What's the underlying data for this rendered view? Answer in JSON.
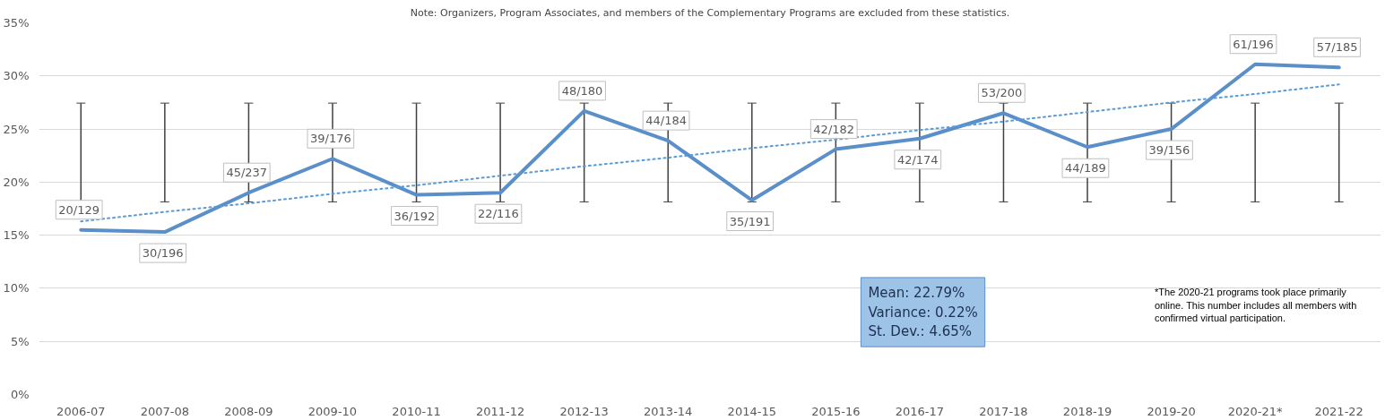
{
  "chart_data": {
    "type": "line",
    "title": "Note: Organizers, Program Associates, and members of the Complementary Programs are excluded from these statistics.",
    "categories": [
      "2006-07",
      "2007-08",
      "2008-09",
      "2009-10",
      "2010-11",
      "2011-12",
      "2012-13",
      "2013-14",
      "2014-15",
      "2015-16",
      "2016-17",
      "2017-18",
      "2018-19",
      "2019-20",
      "2020-21*",
      "2021-22"
    ],
    "series": [
      {
        "color": "#5b8fc9",
        "values": [
          15.5,
          15.3,
          19.0,
          22.2,
          18.8,
          19.0,
          26.7,
          23.9,
          18.3,
          23.1,
          24.1,
          26.5,
          23.3,
          25.0,
          31.1,
          30.8
        ],
        "errors": [
          [
            18.14,
            27.44
          ],
          [
            18.14,
            27.44
          ],
          [
            18.14,
            27.44
          ],
          [
            18.14,
            27.44
          ],
          [
            18.14,
            27.44
          ],
          [
            18.14,
            27.44
          ],
          [
            18.14,
            27.44
          ],
          [
            18.14,
            27.44
          ],
          [
            18.14,
            27.44
          ],
          [
            18.14,
            27.44
          ],
          [
            18.14,
            27.44
          ],
          [
            18.14,
            27.44
          ],
          [
            18.14,
            27.44
          ],
          [
            18.14,
            27.44
          ],
          [
            18.14,
            27.44
          ],
          [
            18.14,
            27.44
          ]
        ],
        "value_labels": [
          "20/129",
          "30/196",
          "45/237",
          "39/176",
          "36/192",
          "22/116",
          "48/180",
          "44/184",
          "35/191",
          "42/182",
          "42/174",
          "53/200",
          "44/189",
          "39/156",
          "61/196",
          "57/185"
        ]
      },
      {
        "type": "line",
        "color": "#5b9bd5",
        "line_style": "dotted",
        "values": [
          16.3,
          17.2,
          18.0,
          18.9,
          19.7,
          20.6,
          21.5,
          22.3,
          23.2,
          24.0,
          24.9,
          25.7,
          26.6,
          27.5,
          28.3,
          29.2
        ]
      }
    ],
    "ylim": [
      0,
      35
    ],
    "yticks": [
      {
        "value": 0,
        "label": "0%"
      },
      {
        "value": 5,
        "label": "5%"
      },
      {
        "value": 10,
        "label": "10%"
      },
      {
        "value": 15,
        "label": "15%"
      },
      {
        "value": 20,
        "label": "20%"
      },
      {
        "value": 25,
        "label": "25%"
      },
      {
        "value": 30,
        "label": "30%"
      },
      {
        "value": 35,
        "label": "35%"
      }
    ],
    "grid": "y",
    "marker": "none",
    "line_style": "solid",
    "annotations": [
      "Mean: 22.79%\nVariance: 0.22%\nSt. Dev.: 4.65%",
      "*The 2020-21 programs took place primarily\nonline.  This number includes all members with\nconfirmed virtual participation."
    ]
  }
}
